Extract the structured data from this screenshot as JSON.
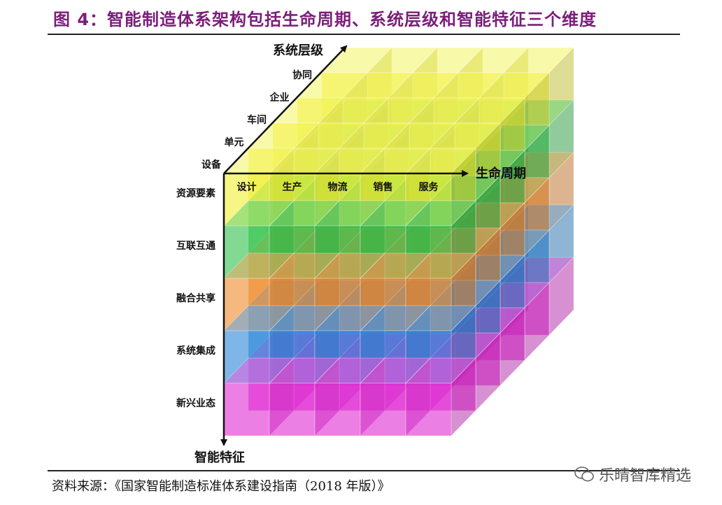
{
  "figure": {
    "title": "图 4：智能制造体系架构包括生命周期、系统层级和智能特征三个维度",
    "source": "资料来源：《国家智能制造标准体系建设指南（2018 年版）》",
    "watermark": "乐晴智库精选"
  },
  "axes": {
    "system_levels": {
      "title": "系统层级",
      "items": [
        "设备",
        "单元",
        "车间",
        "企业",
        "协同"
      ]
    },
    "lifecycle": {
      "title": "生命周期",
      "items": [
        "设计",
        "生产",
        "物流",
        "销售",
        "服务"
      ]
    },
    "intelligence": {
      "title": "智能特征",
      "items": [
        "资源要素",
        "互联互通",
        "融合共享",
        "系统集成",
        "新兴业态"
      ]
    }
  },
  "layer_colors": {
    "资源要素": "#f0f032",
    "互联互通": "#2ec24a",
    "融合共享": "#ee8a2a",
    "系统集成": "#2a86d8",
    "新兴业态": "#e02ad2"
  }
}
